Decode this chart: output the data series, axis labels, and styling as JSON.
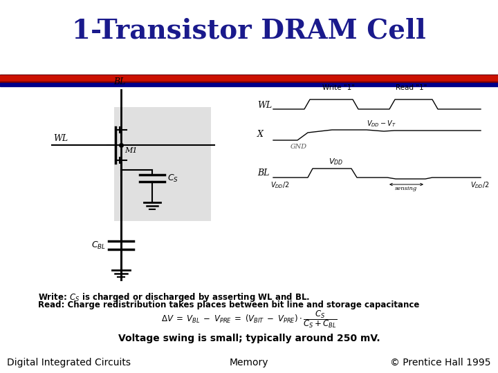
{
  "title": "1-Transistor DRAM Cell",
  "title_color": "#1a1a8c",
  "title_fontsize": 28,
  "bg_color": "#ffffff",
  "footer_left": "Digital Integrated Circuits",
  "footer_center": "Memory",
  "footer_right": "© Prentice Hall 1995",
  "footer_fontsize": 10,
  "voltage_swing_text": "Voltage swing is small; typically around 250 mV."
}
